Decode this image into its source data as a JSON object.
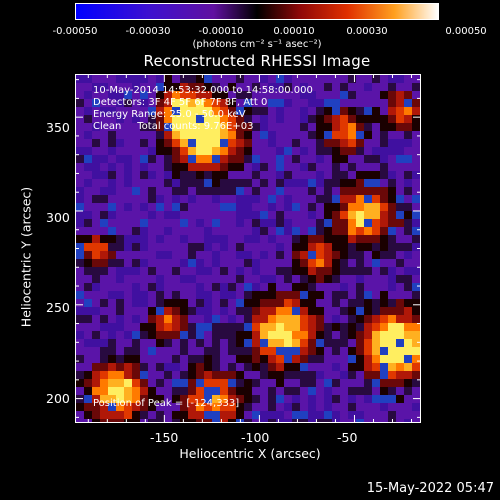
{
  "colorbar": {
    "tick_labels": [
      "-0.00050",
      "-0.00030",
      "-0.00010",
      "0.00010",
      "0.00030",
      "0.00050"
    ],
    "units": "(photons cm⁻² s⁻¹ asec⁻²)",
    "colors": [
      "#0000ff",
      "#3d00d8",
      "#7a10b0",
      "#000000",
      "#a01010",
      "#e04000",
      "#ff9000",
      "#ffe040",
      "#ffffff"
    ]
  },
  "plot": {
    "title": "Reconstructed RHESSI Image",
    "annotations": {
      "line1": "10-May-2014 14:53:32.000 to 14:58:00.000",
      "line2": "Detectors: 3F 4F 5F 6F 7F 8F, Att 0",
      "line3": "Energy Range: 25.0 - 50.0 keV",
      "line4": "Clean     Total counts: 9.76E+03",
      "peak": "Position of Peak = [-124,333]"
    },
    "x_axis": {
      "label": "Heliocentric X (arcsec)",
      "ticks": [
        "-150",
        "-100",
        "-50"
      ],
      "range": [
        -197,
        -15
      ]
    },
    "y_axis": {
      "label": "Heliocentric Y (arcsec)",
      "ticks": [
        "200",
        "250",
        "300",
        "350"
      ],
      "range": [
        187,
        373
      ]
    },
    "peak_position": [
      -124,
      333
    ]
  },
  "footer": {
    "date": "15-May-2022 05:47"
  }
}
